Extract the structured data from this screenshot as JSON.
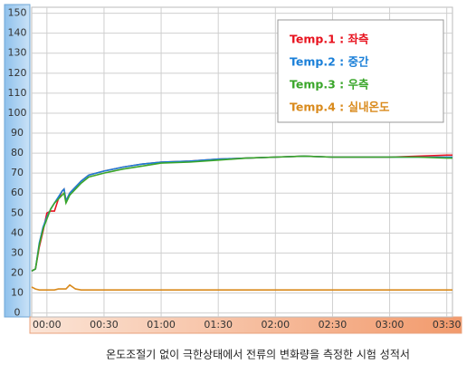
{
  "chart_data": {
    "type": "line",
    "caption": "온도조절기 없이 극한상태에서 전류의 변화량을 측정한 시험 성적서",
    "x": [
      -8,
      -6,
      -4,
      -2,
      0,
      2,
      4,
      6,
      8,
      9,
      10,
      12,
      15,
      18,
      22,
      30,
      40,
      50,
      60,
      75,
      90,
      105,
      120,
      135,
      150,
      165,
      180,
      195,
      210,
      213
    ],
    "series": [
      {
        "name": "Temp.1 : 좌측",
        "color": "#e8131f",
        "values": [
          21,
          22,
          33,
          41,
          50,
          51,
          51,
          57,
          61,
          62,
          56,
          60,
          63,
          66,
          69,
          71,
          73,
          74.5,
          75.5,
          76,
          77,
          77.5,
          78,
          78.5,
          78,
          78,
          78,
          78.5,
          79,
          79
        ]
      },
      {
        "name": "Temp.2 : 중간",
        "color": "#1a7fd8",
        "values": [
          21,
          22,
          35,
          43,
          48,
          52,
          55,
          58,
          61,
          62,
          56,
          60,
          63,
          66,
          69,
          71,
          73,
          74.5,
          75.5,
          76,
          77,
          77.5,
          78,
          78.5,
          78,
          78,
          78,
          78,
          78,
          78
        ]
      },
      {
        "name": "Temp.3 : 우측",
        "color": "#3aa62a",
        "values": [
          21,
          22,
          34,
          42,
          47,
          52,
          55,
          57,
          59,
          60,
          55,
          59,
          62,
          65,
          68,
          70,
          72,
          73.5,
          75,
          75.5,
          76.5,
          77.5,
          78,
          78.5,
          78,
          78,
          78,
          78,
          77.5,
          77.5
        ]
      },
      {
        "name": "Temp.4 : 실내온도",
        "color": "#d98a1c",
        "values": [
          13,
          12,
          11.5,
          11.5,
          11.5,
          11.5,
          11.5,
          12,
          12,
          12,
          12,
          14,
          12,
          11.5,
          11.5,
          11.5,
          11.5,
          11.5,
          11.5,
          11.5,
          11.5,
          11.5,
          11.5,
          11.5,
          11.5,
          11.5,
          11.5,
          11.5,
          11.5,
          11.5
        ]
      }
    ],
    "xlim": [
      -8,
      213
    ],
    "xticks": [
      {
        "value": 0,
        "label": "00:00"
      },
      {
        "value": 30,
        "label": "00:30"
      },
      {
        "value": 60,
        "label": "01:00"
      },
      {
        "value": 90,
        "label": "01:30"
      },
      {
        "value": 120,
        "label": "02:00"
      },
      {
        "value": 150,
        "label": "02:30"
      },
      {
        "value": 180,
        "label": "03:00"
      },
      {
        "value": 210,
        "label": "03:30"
      }
    ],
    "ylim": [
      -2,
      153
    ],
    "yticks": [
      0,
      10,
      20,
      30,
      40,
      50,
      60,
      70,
      80,
      90,
      100,
      110,
      120,
      130,
      140,
      150
    ],
    "grid": true
  }
}
